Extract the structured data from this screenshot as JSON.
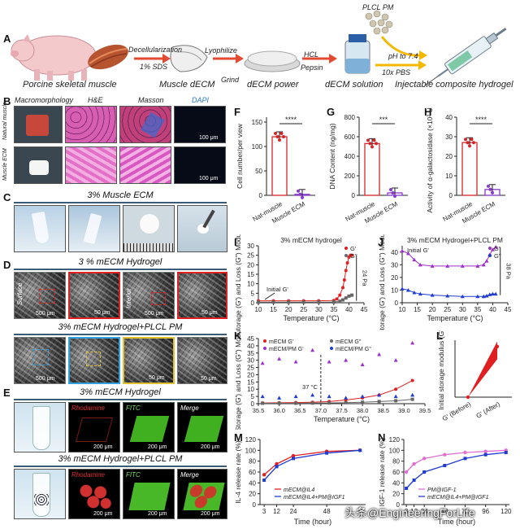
{
  "panels": {
    "A": "A",
    "B": "B",
    "C": "C",
    "D": "D",
    "E": "E",
    "F": "F",
    "G": "G",
    "H": "H",
    "I": "I",
    "J": "J",
    "K": "K",
    "L": "L",
    "M": "M",
    "N": "N"
  },
  "schematic": {
    "pig_label": "Porcine skeletal muscle",
    "step1_top": "Decellularization",
    "step1_bottom": "1% SDS",
    "muscle_decm": "Muscle dECM",
    "step2_top": "Lyophilize",
    "step2_bottom": "Grind",
    "decm_powder": "dECM power",
    "step3_top": "HCL",
    "step3_bottom": "Pepsin",
    "decm_solution": "dECM solution",
    "plcl_pm": "PLCL PM",
    "step4_top": "pH to 7.4",
    "step4_bottom": "10x PBS",
    "hydrogel": "Injectable composite hydrogel"
  },
  "panel_b": {
    "headers": [
      "Macromorphology",
      "H&E",
      "Masson",
      "DAPI"
    ],
    "row1": "Natural muscle",
    "row2": "Muscle ECM",
    "scale": "100 μm"
  },
  "panel_c": {
    "title": "3% Muscle ECM"
  },
  "panel_d": {
    "title1": "3 % mECM Hydrogel",
    "surface": "Surface",
    "interior": "Interior",
    "title2": "3% mECM Hydrogel+PLCL PM",
    "scale_500": "500 μm",
    "scale_50": "50 μm"
  },
  "panel_e": {
    "title1": "3% mECM Hydrogel",
    "title2": "3% mECM Hydrogel+PLCL PM",
    "rhodamine": "Rhodamine",
    "fitc": "FITC",
    "merge": "Merge",
    "scale": "200 μm"
  },
  "chart_data": [
    {
      "id": "F",
      "type": "bar",
      "ylabel": "Cell number/per view",
      "categories": [
        "Nat-muscle",
        "Muscle ECM"
      ],
      "values": [
        120,
        2
      ],
      "yticks": [
        0,
        50,
        100,
        150
      ],
      "ylim": [
        0,
        160
      ],
      "significance": "****",
      "color": "#d62728"
    },
    {
      "id": "G",
      "type": "bar",
      "ylabel": "DNA Content (ng/mg)",
      "categories": [
        "Nat-muscle",
        "Muscle ECM"
      ],
      "values": [
        530,
        25
      ],
      "yticks": [
        0,
        200,
        400,
        600,
        800
      ],
      "ylim": [
        0,
        800
      ],
      "significance": "***",
      "color": "#d62728"
    },
    {
      "id": "H",
      "type": "bar",
      "ylabel": "Activity of α-galactosidase (×10² U/g)",
      "categories": [
        "Nat-muscle",
        "Muscle ECM"
      ],
      "values": [
        27,
        3
      ],
      "yticks": [
        0,
        10,
        20,
        30,
        40
      ],
      "ylim": [
        0,
        40
      ],
      "significance": "****",
      "color": "#d62728"
    },
    {
      "id": "I",
      "type": "scatter",
      "title": "3% mECM hydrogel",
      "xlabel": "Temperature (°C)",
      "ylabel": "Storage (G') and Loss (G'') Modulus/Pa",
      "xticks": [
        10,
        15,
        20,
        25,
        30,
        35,
        40,
        45
      ],
      "yticks": [
        0,
        5,
        10,
        15,
        20,
        25,
        30
      ],
      "xlim": [
        10,
        45
      ],
      "ylim": [
        0,
        30
      ],
      "annotation": "Initial G'",
      "bracket": "24 Pa",
      "series": [
        {
          "name": "G'",
          "color": "#e02020",
          "x": [
            10,
            15,
            20,
            25,
            30,
            35,
            36,
            37,
            38,
            38.5,
            39,
            39.5,
            40,
            40.5,
            41
          ],
          "y": [
            1,
            1,
            1,
            1,
            1,
            1.2,
            2,
            4,
            8,
            12,
            17,
            21,
            24,
            25,
            25
          ]
        },
        {
          "name": "G''",
          "color": "#666666",
          "x": [
            10,
            15,
            20,
            25,
            30,
            35,
            37,
            38,
            39,
            40,
            41
          ],
          "y": [
            0.3,
            0.3,
            0.3,
            0.3,
            0.3,
            0.4,
            0.8,
            1.5,
            2.5,
            3.5,
            4
          ]
        }
      ]
    },
    {
      "id": "J",
      "type": "scatter",
      "title": "3% mECM Hydrogel+PLCL PM",
      "xlabel": "Temperature (°C)",
      "ylabel": "Storage (G') and Loss (G'') Modulus/Pa",
      "xticks": [
        10,
        15,
        20,
        25,
        30,
        35,
        40,
        45
      ],
      "yticks": [
        0,
        10,
        20,
        30,
        40
      ],
      "xlim": [
        10,
        45
      ],
      "ylim": [
        0,
        45
      ],
      "annotation": "Initial G'",
      "bracket": "38 Pa",
      "series": [
        {
          "name": "G'",
          "color": "#9b30c8",
          "x": [
            10,
            12,
            14,
            16,
            20,
            25,
            30,
            35,
            37,
            38,
            39,
            40,
            41
          ],
          "y": [
            41,
            39,
            34,
            30,
            29,
            29,
            29,
            29,
            30,
            33,
            38,
            42,
            44
          ]
        },
        {
          "name": "G''",
          "color": "#1f3bd0",
          "x": [
            10,
            12,
            14,
            16,
            20,
            25,
            30,
            35,
            37,
            38,
            39,
            40,
            41
          ],
          "y": [
            11,
            10,
            8,
            7,
            6,
            5.5,
            5,
            5,
            5,
            5.5,
            6.5,
            7,
            7
          ]
        }
      ]
    },
    {
      "id": "K",
      "type": "scatter",
      "xlabel": "Temperature (°C)",
      "ylabel": "Storage (G') and Loss (G'') Modulus/Pa",
      "xticks": [
        35.5,
        36.0,
        36.5,
        37.0,
        37.5,
        38.0,
        38.5,
        39.0,
        39.5
      ],
      "yticks": [
        0,
        5,
        10,
        15,
        20,
        25,
        30,
        35,
        40,
        45
      ],
      "xlim": [
        35.5,
        39.5
      ],
      "ylim": [
        0,
        45
      ],
      "annotation": "37 °C",
      "series": [
        {
          "name": "mECM G'",
          "color": "#e02020",
          "x": [
            35.6,
            36.0,
            36.4,
            36.8,
            37.2,
            37.6,
            38.0,
            38.4,
            38.8,
            39.2
          ],
          "y": [
            0.5,
            0.6,
            0.8,
            1,
            1.5,
            2.5,
            4,
            6,
            10,
            16
          ]
        },
        {
          "name": "mECM G''",
          "color": "#666666",
          "x": [
            35.6,
            36.0,
            36.4,
            36.8,
            37.2,
            37.6,
            38.0,
            38.4,
            38.8,
            39.2
          ],
          "y": [
            0.3,
            0.3,
            0.3,
            0.4,
            0.5,
            0.7,
            1,
            1.5,
            2,
            3
          ]
        },
        {
          "name": "mECM/PM G'",
          "color": "#9b30c8",
          "x": [
            35.6,
            36.0,
            36.4,
            36.8,
            37.2,
            37.6,
            38.0,
            38.4,
            38.8,
            39.2
          ],
          "y": [
            28,
            31,
            29,
            37,
            29,
            30,
            27,
            34,
            30,
            42
          ]
        },
        {
          "name": "mECM/PM G''",
          "color": "#1f3bd0",
          "x": [
            35.6,
            36.0,
            36.4,
            36.8,
            37.2,
            37.6,
            38.0,
            38.4,
            38.8,
            39.2
          ],
          "y": [
            5,
            4,
            5,
            6,
            5,
            4,
            5,
            6,
            5,
            6
          ]
        }
      ]
    },
    {
      "id": "L",
      "type": "bar",
      "ylabel": "Initial storage modulus (G')",
      "categories": [
        "G' (Before)",
        "G' (After)"
      ],
      "values": [
        0,
        40
      ],
      "yticks": [
        0,
        10,
        20,
        30,
        40
      ],
      "ylim": [
        0,
        45
      ],
      "color": "#e02020"
    },
    {
      "id": "M",
      "type": "line",
      "xlabel": "Time (hour)",
      "ylabel": "IL-4 release rate (%)",
      "xticks": [
        3,
        12,
        24,
        48
      ],
      "x": [
        3,
        12,
        24,
        48,
        72
      ],
      "yticks": [
        0,
        20,
        40,
        60,
        80,
        100,
        120
      ],
      "ylim": [
        0,
        120
      ],
      "series": [
        {
          "name": "mECM@IL4",
          "color": "#e02020",
          "values": [
            55,
            75,
            90,
            98,
            100
          ]
        },
        {
          "name": "mECM@IL4+PM@IGF1",
          "color": "#1f3bd0",
          "values": [
            45,
            70,
            85,
            95,
            100
          ]
        }
      ]
    },
    {
      "id": "N",
      "type": "line",
      "xlabel": "Time (hour)",
      "ylabel": "IGF-1 release rate (%)",
      "x": [
        3,
        12,
        24,
        48,
        72,
        96,
        120
      ],
      "yticks": [
        0,
        20,
        40,
        60,
        80,
        100,
        120
      ],
      "ylim": [
        0,
        120
      ],
      "series": [
        {
          "name": "PM@IGF-1",
          "color": "#e070d0",
          "values": [
            60,
            75,
            85,
            92,
            96,
            98,
            100
          ]
        },
        {
          "name": "mECM@IL4+PM@IGF1",
          "color": "#1f3bd0",
          "values": [
            30,
            45,
            60,
            72,
            85,
            92,
            96
          ]
        }
      ]
    }
  ],
  "watermark": "头条@EngineeringForLife"
}
